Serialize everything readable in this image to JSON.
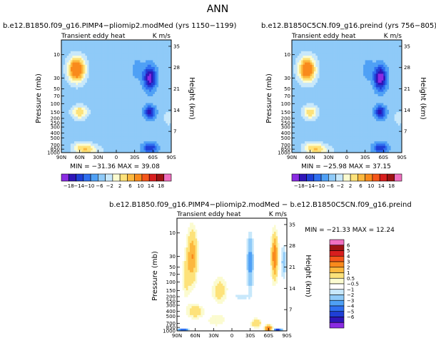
{
  "page_title": "ANN",
  "colors": {
    "seq_a": [
      "#8a2be2",
      "#2f16b8",
      "#1f3fd6",
      "#2f6ff0",
      "#4fa0f5",
      "#8fcaf8",
      "#c8e8fb",
      "#fbfbd0",
      "#fde27a",
      "#fcb83e",
      "#f98a1c",
      "#f5561a",
      "#d81e1e",
      "#9e1212",
      "#f070c0"
    ],
    "seq_b": [
      "#8a2be2",
      "#2f16b8",
      "#1f3fd6",
      "#2f6ff0",
      "#4fa0f5",
      "#8fcaf8",
      "#c8e8fb",
      "#ffffff",
      "#fbfbd0",
      "#fde27a",
      "#fcb83e",
      "#f98a1c",
      "#f5561a",
      "#d81e1e",
      "#9e1212",
      "#f070c0"
    ]
  },
  "chart_data": [
    {
      "type": "heatmap",
      "title": "b.e12.B1850.f09_g16.PIMP4−pliomip2.modMed (yrs 1150−1199)",
      "subtitle_left": "Transient eddy heat",
      "subtitle_right": "K m/s",
      "ylabel": "Pressure (mb)",
      "ylabel_right": "Height (km)",
      "x_ticks": [
        "90N",
        "60N",
        "30N",
        "0",
        "30S",
        "60S",
        "90S"
      ],
      "y_ticks": [
        "10",
        "30",
        "50",
        "70",
        "100",
        "150",
        "200",
        "250",
        "300",
        "400",
        "500",
        "700",
        "850",
        "1000"
      ],
      "y_ticks_right": [
        "35",
        "28",
        "21",
        "14",
        "7"
      ],
      "stats": "MIN = −31.36   MAX =  39.08",
      "colorbar_labels": [
        "−18",
        "−14",
        "−10",
        "−6",
        "−2",
        "2",
        "6",
        "10",
        "14",
        "18"
      ],
      "lobes": [
        {
          "lat": 65,
          "p": 20,
          "v": 28,
          "w": 13,
          "h": 0.55
        },
        {
          "lat": 60,
          "p": 150,
          "v": 14,
          "w": 12,
          "h": 0.3
        },
        {
          "lat": 55,
          "p": 800,
          "v": 12,
          "w": 16,
          "h": 0.25
        },
        {
          "lat": 40,
          "p": 900,
          "v": 6,
          "w": 18,
          "h": 0.25
        },
        {
          "lat": -55,
          "p": 30,
          "v": -20,
          "w": 10,
          "h": 0.55
        },
        {
          "lat": -55,
          "p": 150,
          "v": -16,
          "w": 9,
          "h": 0.3
        },
        {
          "lat": -55,
          "p": 800,
          "v": -14,
          "w": 12,
          "h": 0.25
        },
        {
          "lat": -35,
          "p": 20,
          "v": -4,
          "w": 10,
          "h": 0.5
        },
        {
          "lat": 0,
          "p": 50,
          "v": -1.5,
          "w": 18,
          "h": 0.8
        },
        {
          "lat": -85,
          "p": 200,
          "v": 4,
          "w": 8,
          "h": 0.35
        }
      ]
    },
    {
      "type": "heatmap",
      "title": "b.e12.B1850C5CN.f09_g16.preind (yrs 756−805)",
      "subtitle_left": "Transient eddy heat",
      "subtitle_right": "K m/s",
      "ylabel": "Pressure (mb)",
      "ylabel_right": "Height (km)",
      "x_ticks": [
        "90N",
        "60N",
        "30N",
        "0",
        "30S",
        "60S",
        "90S"
      ],
      "y_ticks": [
        "10",
        "30",
        "50",
        "70",
        "100",
        "150",
        "200",
        "250",
        "300",
        "400",
        "500",
        "700",
        "850",
        "1000"
      ],
      "y_ticks_right": [
        "35",
        "28",
        "21",
        "14",
        "7"
      ],
      "stats": "MIN = −25.98   MAX =  37.15",
      "colorbar_labels": [
        "−18",
        "−14",
        "−10",
        "−6",
        "−2",
        "2",
        "6",
        "10",
        "14",
        "18"
      ],
      "lobes": [
        {
          "lat": 65,
          "p": 20,
          "v": 27,
          "w": 13,
          "h": 0.55
        },
        {
          "lat": 60,
          "p": 150,
          "v": 13,
          "w": 12,
          "h": 0.3
        },
        {
          "lat": 55,
          "p": 800,
          "v": 12,
          "w": 16,
          "h": 0.25
        },
        {
          "lat": 40,
          "p": 900,
          "v": 6,
          "w": 18,
          "h": 0.25
        },
        {
          "lat": -55,
          "p": 30,
          "v": -22,
          "w": 10,
          "h": 0.55
        },
        {
          "lat": -55,
          "p": 150,
          "v": -16,
          "w": 9,
          "h": 0.3
        },
        {
          "lat": -55,
          "p": 800,
          "v": -14,
          "w": 12,
          "h": 0.25
        },
        {
          "lat": -35,
          "p": 20,
          "v": -4,
          "w": 10,
          "h": 0.5
        },
        {
          "lat": 0,
          "p": 50,
          "v": -1.5,
          "w": 18,
          "h": 0.8
        },
        {
          "lat": -85,
          "p": 200,
          "v": 4,
          "w": 8,
          "h": 0.35
        }
      ]
    },
    {
      "type": "heatmap",
      "title": "b.e12.B1850.f09_g16.PIMP4−pliomip2.modMed − b.e12.B1850C5CN.f09_g16.preind",
      "subtitle_left": "Transient eddy heat",
      "subtitle_right": "K m/s",
      "ylabel": "Pressure (mb)",
      "ylabel_right": "Height (km)",
      "x_ticks": [
        "90N",
        "60N",
        "30N",
        "0",
        "30S",
        "60S",
        "90S"
      ],
      "y_ticks": [
        "10",
        "30",
        "50",
        "70",
        "100",
        "150",
        "200",
        "250",
        "300",
        "400",
        "500",
        "700",
        "850",
        "1000"
      ],
      "y_ticks_right": [
        "35",
        "28",
        "21",
        "14",
        "7"
      ],
      "stats": "MIN = −21.33   MAX =  12.24",
      "colorbar_labels": [
        "6",
        "5",
        "4",
        "3",
        "2",
        "1",
        "0.5",
        "−0.5",
        "−1",
        "−2",
        "−3",
        "−4",
        "−5",
        "−6"
      ],
      "lobes": [
        {
          "lat": 65,
          "p": 30,
          "v": 3,
          "w": 8,
          "h": 1.2
        },
        {
          "lat": 75,
          "p": 80,
          "v": 1.2,
          "w": 6,
          "h": 1.0
        },
        {
          "lat": 20,
          "p": 150,
          "v": 1.5,
          "w": 12,
          "h": 0.6
        },
        {
          "lat": 60,
          "p": 400,
          "v": 2,
          "w": 12,
          "h": 0.3
        },
        {
          "lat": 25,
          "p": 600,
          "v": 1,
          "w": 15,
          "h": 0.3
        },
        {
          "lat": -30,
          "p": 40,
          "v": -2.5,
          "w": 5,
          "h": 1.2
        },
        {
          "lat": -70,
          "p": 30,
          "v": 4,
          "w": 5,
          "h": 1.0
        },
        {
          "lat": -85,
          "p": 40,
          "v": -1.5,
          "w": 4,
          "h": 0.8
        },
        {
          "lat": -15,
          "p": 200,
          "v": -0.8,
          "w": 12,
          "h": 0.2
        },
        {
          "lat": -60,
          "p": 900,
          "v": 4,
          "w": 6,
          "h": 0.15
        },
        {
          "lat": 80,
          "p": 980,
          "v": -6,
          "w": 8,
          "h": 0.05
        },
        {
          "lat": -75,
          "p": 950,
          "v": -5,
          "w": 6,
          "h": 0.05
        },
        {
          "lat": -40,
          "p": 700,
          "v": 2,
          "w": 8,
          "h": 0.2
        }
      ]
    }
  ]
}
